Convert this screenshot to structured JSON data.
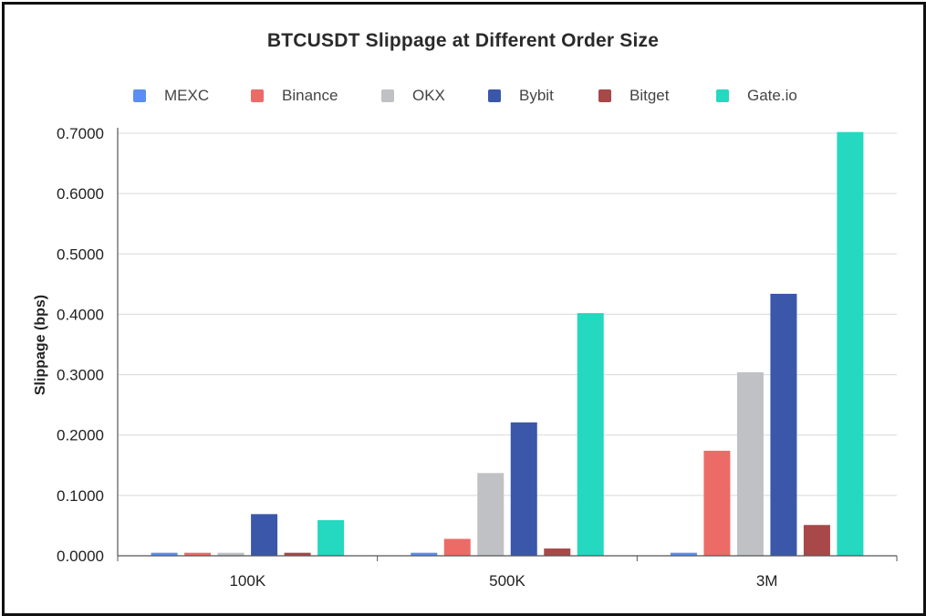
{
  "chart_data": {
    "type": "bar",
    "title": "BTCUSDT Slippage at Different Order Size",
    "xlabel": "",
    "ylabel": "Slippage (bps)",
    "ylim": [
      0,
      0.7
    ],
    "yticks": [
      "0.0000",
      "0.1000",
      "0.2000",
      "0.3000",
      "0.4000",
      "0.5000",
      "0.6000",
      "0.7000"
    ],
    "ytick_values": [
      0,
      0.1,
      0.2,
      0.3,
      0.4,
      0.5,
      0.6,
      0.7
    ],
    "categories": [
      "100K",
      "500K",
      "3M"
    ],
    "grid": true,
    "legend_position": "top",
    "series": [
      {
        "name": "MEXC",
        "color": "#5b8ef0",
        "values": [
          0.005,
          0.005,
          0.005
        ]
      },
      {
        "name": "Binance",
        "color": "#ec6b67",
        "values": [
          0.005,
          0.028,
          0.174
        ]
      },
      {
        "name": "OKX",
        "color": "#bfc1c4",
        "values": [
          0.005,
          0.137,
          0.304
        ]
      },
      {
        "name": "Bybit",
        "color": "#3a57a9",
        "values": [
          0.069,
          0.221,
          0.434
        ]
      },
      {
        "name": "Bitget",
        "color": "#a84848",
        "values": [
          0.005,
          0.012,
          0.051
        ]
      },
      {
        "name": "Gate.io",
        "color": "#25d8c0",
        "values": [
          0.059,
          0.402,
          0.702
        ]
      }
    ]
  }
}
